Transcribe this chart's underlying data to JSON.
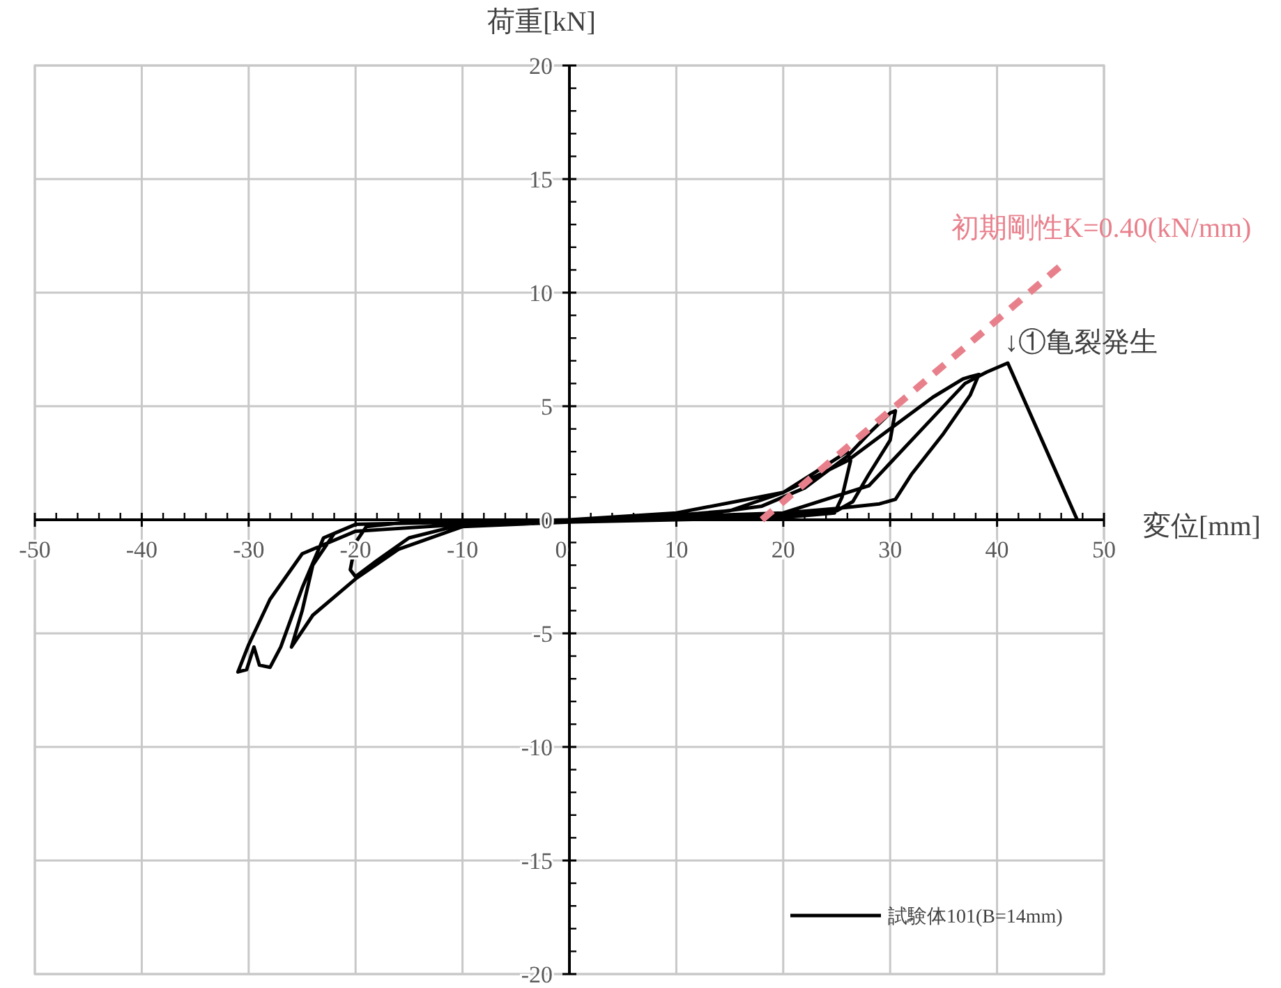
{
  "chart_data": {
    "type": "line",
    "xlabel": "変位[mm]",
    "ylabel": "荷重[kN]",
    "xlim": [
      -50,
      50
    ],
    "ylim": [
      -20,
      20
    ],
    "xticks": [
      -50,
      -40,
      -30,
      -20,
      -10,
      0,
      10,
      20,
      30,
      40,
      50
    ],
    "yticks": [
      -20,
      -15,
      -10,
      -5,
      0,
      5,
      10,
      15,
      20
    ],
    "grid": true,
    "legend": "bottom right",
    "marker": "none",
    "series": [
      {
        "name": "試験体101(B=14mm)",
        "color": "#000000",
        "line_style": "solid",
        "x": [
          0,
          10,
          15,
          20,
          24,
          26,
          26.3,
          25.5,
          24.8,
          20,
          10,
          0,
          -10,
          -15,
          -18,
          -20,
          -20.5,
          -20,
          -19,
          -15,
          -5,
          0,
          10,
          18,
          22,
          26,
          28,
          30,
          30.5,
          30,
          28,
          26.5,
          25,
          20,
          10,
          0,
          -10,
          -16,
          -20,
          -24,
          -26,
          -25,
          -24,
          -22,
          -20,
          -10,
          0,
          10,
          20,
          25,
          29,
          30.5,
          32,
          35,
          37.5,
          38.3,
          37.5,
          36.8,
          34,
          30,
          26,
          20,
          10,
          0,
          -10,
          -20,
          -25,
          -28,
          -30,
          -31,
          -30.2,
          -29.5,
          -29,
          -28,
          -27,
          -25,
          -23,
          -20,
          -10,
          0,
          20,
          28,
          33,
          37,
          39,
          41,
          47.5
        ],
        "values": [
          0,
          0.2,
          0.4,
          1.2,
          2.4,
          3.0,
          2.6,
          1.0,
          0.3,
          0.1,
          0,
          -0.1,
          -0.2,
          -0.8,
          -1.8,
          -2.5,
          -2.2,
          -1.0,
          -0.3,
          -0.1,
          -0.05,
          0,
          0.1,
          0.6,
          1.4,
          2.8,
          3.8,
          4.7,
          4.8,
          3.5,
          2.0,
          0.8,
          0.4,
          0.2,
          0,
          -0.1,
          -0.3,
          -1.3,
          -2.6,
          -4.2,
          -5.6,
          -4.0,
          -2.0,
          -0.6,
          -0.2,
          -0.1,
          0,
          0.1,
          0.3,
          0.5,
          0.7,
          0.9,
          2.0,
          3.8,
          5.5,
          6.4,
          6.3,
          6.2,
          5.4,
          4.0,
          2.6,
          1.2,
          0.3,
          0,
          -0.2,
          -0.5,
          -1.5,
          -3.5,
          -5.5,
          -6.7,
          -6.6,
          -5.6,
          -6.4,
          -6.5,
          -5.6,
          -3.0,
          -0.8,
          -0.2,
          -0.1,
          0,
          0.3,
          1.5,
          4.0,
          6.0,
          6.5,
          6.9,
          0
        ]
      },
      {
        "name": "初期剛性K=0.40(kN/mm)",
        "color": "#e8808c",
        "line_style": "dashed",
        "x": [
          18,
          46.5
        ],
        "values": [
          0,
          11.4
        ]
      }
    ],
    "annotations": [
      "↓①亀裂発生"
    ]
  }
}
